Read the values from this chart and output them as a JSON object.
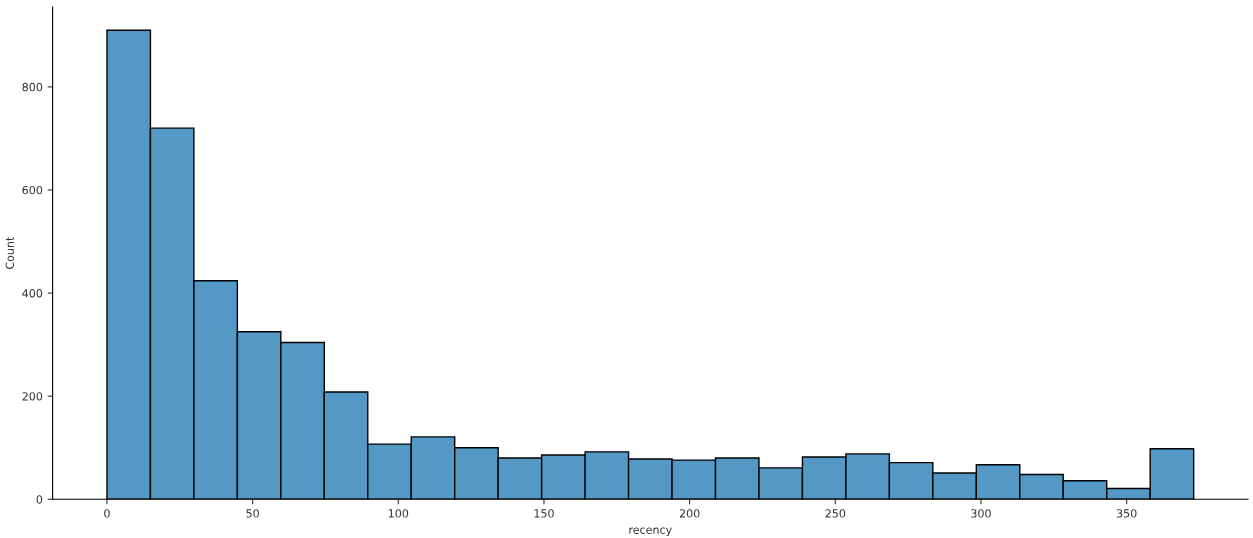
{
  "chart_data": {
    "type": "histogram",
    "xlabel": "recency",
    "ylabel": "Count",
    "bins": [
      0,
      14.92,
      29.84,
      44.76,
      59.68,
      74.6,
      89.52,
      104.44,
      119.36,
      134.28,
      149.2,
      164.12,
      179.04,
      193.96,
      208.88,
      223.8,
      238.72,
      253.64,
      268.56,
      283.48,
      298.4,
      313.32,
      328.24,
      343.16,
      358.08,
      373
    ],
    "values": [
      910,
      720,
      424,
      325,
      304,
      208,
      107,
      121,
      100,
      80,
      86,
      92,
      78,
      76,
      80,
      61,
      82,
      88,
      71,
      51,
      67,
      48,
      36,
      21,
      98
    ],
    "color": "#5499c6",
    "xlim": [
      -18.65,
      391.65
    ],
    "ylim": [
      0,
      955
    ],
    "xticks": [
      0,
      50,
      100,
      150,
      200,
      250,
      300,
      350
    ],
    "yticks": [
      0,
      200,
      400,
      600,
      800
    ],
    "grid": false
  }
}
